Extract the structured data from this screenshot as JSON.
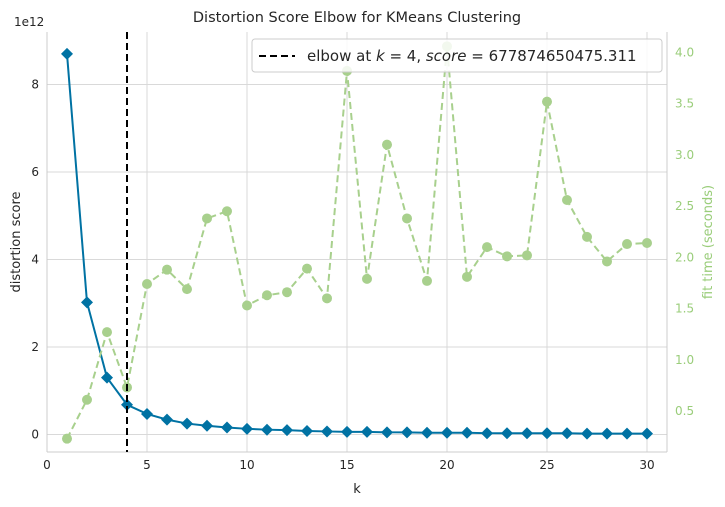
{
  "chart_data": {
    "type": "line",
    "title": "Distortion Score Elbow for KMeans Clustering",
    "xlabel": "k",
    "ylabel": "distortion score",
    "ylabel_right": "fit time (seconds)",
    "y_exponent": "1e12",
    "xlim": [
      0,
      31
    ],
    "ylim": [
      -0.4,
      9.2
    ],
    "ylim_right": [
      0.1,
      4.2
    ],
    "x_ticks": [
      0,
      5,
      10,
      15,
      20,
      25,
      30
    ],
    "x_tick_labels": [
      "0",
      "5",
      "10",
      "15",
      "20",
      "25",
      "30"
    ],
    "y_ticks": [
      0,
      2,
      4,
      6,
      8
    ],
    "y_tick_labels": [
      "0",
      "2",
      "4",
      "6",
      "8"
    ],
    "y_right_ticks": [
      0.5,
      1.0,
      1.5,
      2.0,
      2.5,
      3.0,
      3.5,
      4.0
    ],
    "y_right_tick_labels": [
      "0.5",
      "1.0",
      "1.5",
      "2.0",
      "2.5",
      "3.0",
      "3.5",
      "4.0"
    ],
    "grid": true,
    "legend_position": "top-right",
    "elbow": {
      "k": 4,
      "legend_prefix": "elbow at ",
      "legend_k": "k",
      "legend_k_value": " = 4, ",
      "legend_score": "score",
      "legend_score_value": " = 677874650475.311",
      "color": "#000000"
    },
    "x": [
      1,
      2,
      3,
      4,
      5,
      6,
      7,
      8,
      9,
      10,
      11,
      12,
      13,
      14,
      15,
      16,
      17,
      18,
      19,
      20,
      21,
      22,
      23,
      24,
      25,
      26,
      27,
      28,
      29,
      30
    ],
    "series": [
      {
        "axis": "left",
        "color": "#0072a3",
        "marker": "diamond",
        "values": [
          8.7,
          3.02,
          1.3,
          0.68,
          0.47,
          0.34,
          0.25,
          0.2,
          0.16,
          0.13,
          0.11,
          0.1,
          0.08,
          0.07,
          0.06,
          0.06,
          0.05,
          0.05,
          0.04,
          0.04,
          0.04,
          0.03,
          0.03,
          0.03,
          0.03,
          0.03,
          0.02,
          0.02,
          0.02,
          0.02
        ]
      },
      {
        "axis": "right",
        "color": "#a8d08d",
        "marker": "circle",
        "dashed": true,
        "values": [
          0.23,
          0.61,
          1.27,
          0.73,
          1.74,
          1.88,
          1.69,
          2.38,
          2.45,
          1.53,
          1.63,
          1.66,
          1.89,
          1.6,
          3.82,
          1.79,
          3.1,
          2.38,
          1.77,
          4.06,
          1.81,
          2.1,
          2.01,
          2.02,
          3.52,
          2.56,
          2.2,
          1.96,
          2.13,
          2.14
        ]
      }
    ]
  }
}
